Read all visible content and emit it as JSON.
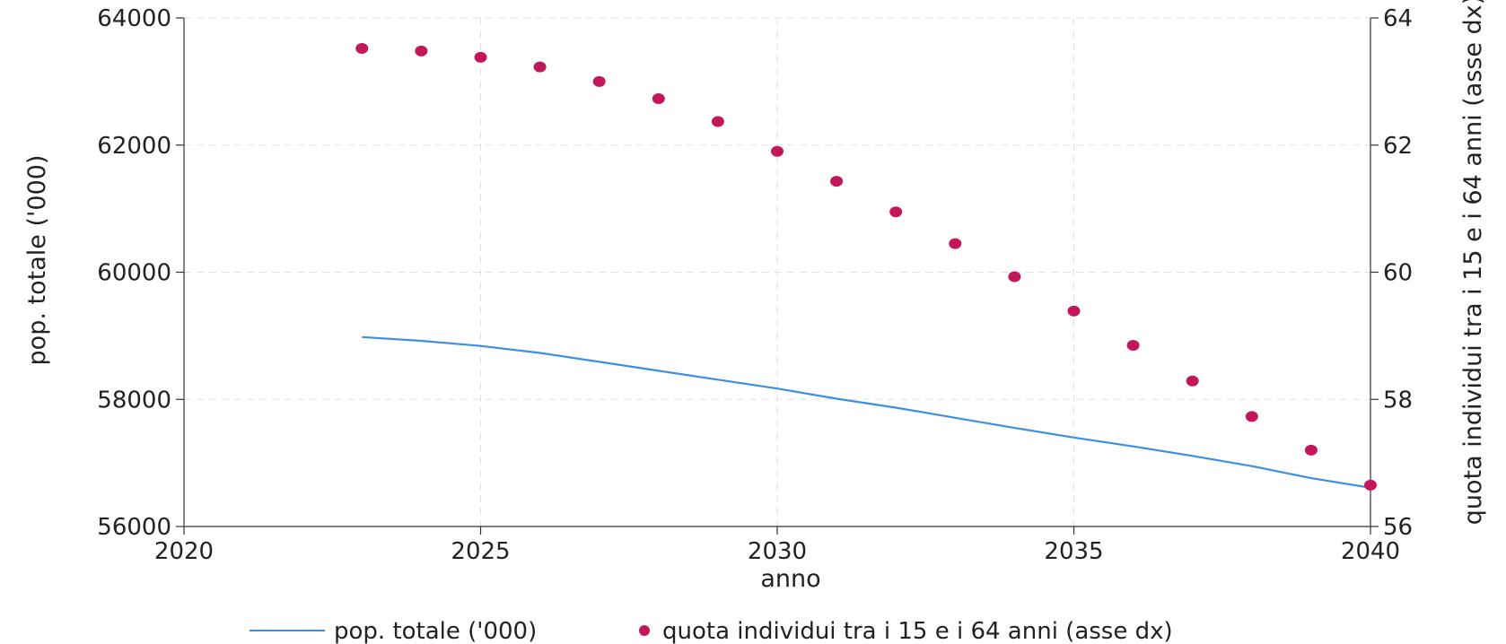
{
  "chart_data": {
    "type": "line",
    "title": "",
    "xlabel": "anno",
    "ylabel_left": "pop. totale ('000)",
    "ylabel_right": "quota individui tra i 15 e i 64 anni (asse dx)",
    "xlim": [
      2020,
      2040
    ],
    "ylim_left": [
      56000,
      64000
    ],
    "ylim_right": [
      56,
      64
    ],
    "xticks": [
      "2020",
      "2025",
      "2030",
      "2035",
      "2040"
    ],
    "yticks_left": [
      "56000",
      "58000",
      "60000",
      "62000",
      "64000"
    ],
    "yticks_right": [
      "56",
      "58",
      "60",
      "62",
      "64"
    ],
    "grid": true,
    "legend_position": "bottom",
    "series": [
      {
        "name": "pop. totale ('000)",
        "kind": "line",
        "axis": "left",
        "color": "#3d8fe0",
        "x": [
          2023,
          2024,
          2025,
          2026,
          2027,
          2028,
          2029,
          2030,
          2031,
          2032,
          2033,
          2034,
          2035,
          2036,
          2037,
          2038,
          2039,
          2040
        ],
        "y": [
          58980,
          58920,
          58840,
          58730,
          58590,
          58450,
          58310,
          58170,
          58010,
          57870,
          57710,
          57550,
          57400,
          57260,
          57110,
          56950,
          56760,
          56610
        ]
      },
      {
        "name": "quota individui tra i 15 e i 64 anni (asse dx)",
        "kind": "scatter",
        "axis": "right",
        "color": "#c2185b",
        "x": [
          2023,
          2024,
          2025,
          2026,
          2027,
          2028,
          2029,
          2030,
          2031,
          2032,
          2033,
          2034,
          2035,
          2036,
          2037,
          2038,
          2039,
          2040
        ],
        "y": [
          63.52,
          63.48,
          63.38,
          63.23,
          63.0,
          62.73,
          62.37,
          61.9,
          61.43,
          60.95,
          60.45,
          59.93,
          59.39,
          58.85,
          58.29,
          57.73,
          57.2,
          56.65
        ]
      }
    ]
  }
}
